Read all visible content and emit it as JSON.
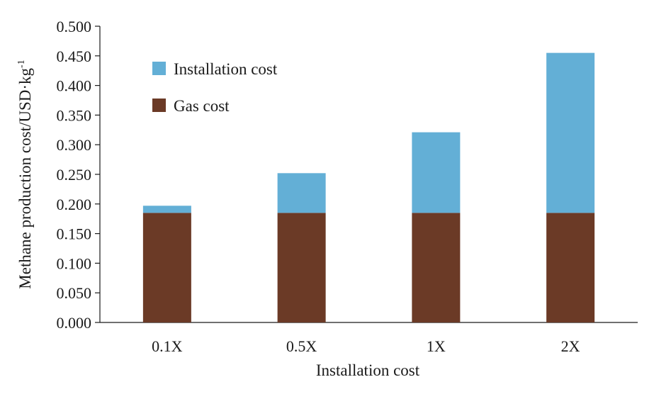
{
  "chart_data": {
    "type": "bar",
    "stacked": true,
    "title": "",
    "xlabel": "Installation cost",
    "ylabel": "Methane production cost/USD·kg",
    "ylabel_superscript": "-1",
    "categories": [
      "0.1X",
      "0.5X",
      "1X",
      "2X"
    ],
    "series": [
      {
        "name": "Gas cost",
        "values": [
          0.185,
          0.185,
          0.185,
          0.185
        ],
        "color": "#6b3a26"
      },
      {
        "name": "Installation cost",
        "values": [
          0.012,
          0.067,
          0.136,
          0.27
        ],
        "color": "#63afd6"
      }
    ],
    "ylim": [
      0,
      0.5
    ],
    "yticks": [
      "0.000",
      "0.050",
      "0.100",
      "0.150",
      "0.200",
      "0.250",
      "0.300",
      "0.350",
      "0.400",
      "0.450",
      "0.500"
    ],
    "grid": false,
    "legend": {
      "placement": "top-left",
      "entries": [
        {
          "label": "Installation cost",
          "color": "#63afd6"
        },
        {
          "label": "Gas cost",
          "color": "#6b3a26"
        }
      ]
    }
  }
}
